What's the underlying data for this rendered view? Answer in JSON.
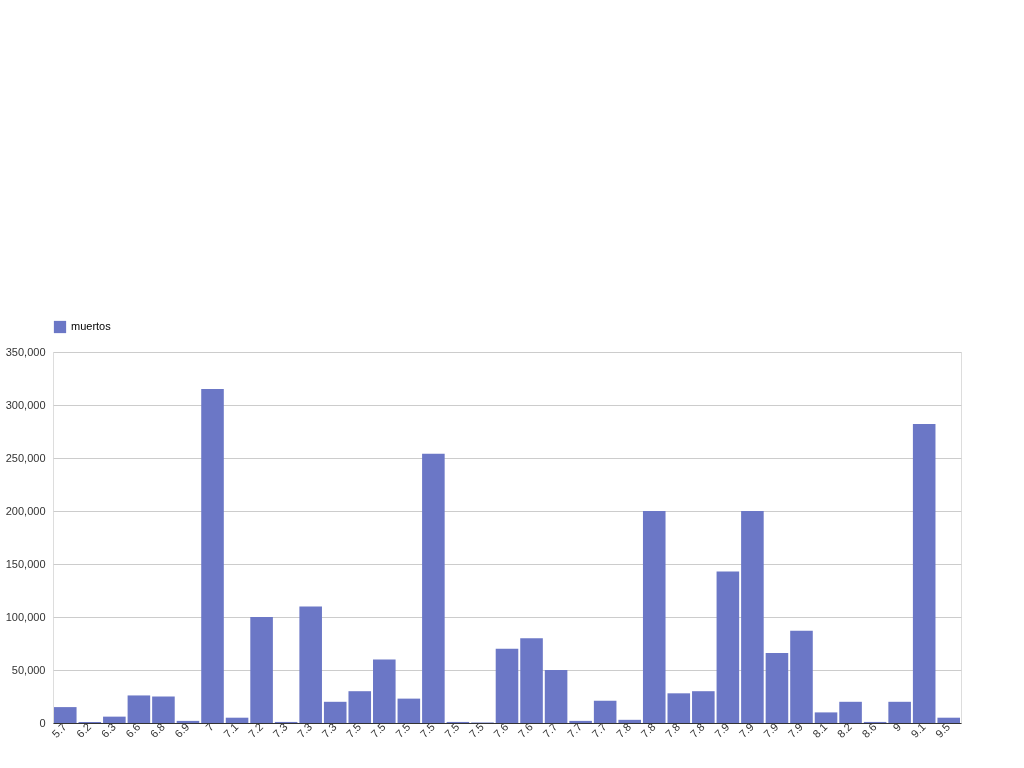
{
  "chart_data": {
    "type": "bar",
    "categories": [
      "5.7",
      "6.2",
      "6.3",
      "6.6",
      "6.8",
      "6.9",
      "7",
      "7.1",
      "7.2",
      "7.3",
      "7.3",
      "7.3",
      "7.5",
      "7.5",
      "7.5",
      "7.5",
      "7.5",
      "7.5",
      "7.6",
      "7.6",
      "7.7",
      "7.7",
      "7.7",
      "7.8",
      "7.8",
      "7.8",
      "7.8",
      "7.9",
      "7.9",
      "7.9",
      "7.9",
      "8.1",
      "8.2",
      "8.6",
      "9",
      "9.1",
      "9.5"
    ],
    "series": [
      {
        "name": "muertos",
        "color": "#6b77c6",
        "values": [
          15000,
          1000,
          6000,
          26000,
          25000,
          2000,
          315000,
          5000,
          100000,
          1000,
          110000,
          20000,
          30000,
          60000,
          23000,
          254000,
          1000,
          500,
          70000,
          80000,
          50000,
          2000,
          21000,
          3000,
          200000,
          28000,
          30000,
          143000,
          200000,
          66000,
          87000,
          10000,
          20000,
          1000,
          20000,
          282000,
          5000
        ]
      }
    ],
    "ylim": [
      0,
      350000
    ],
    "yticks": [
      {
        "value": 0,
        "label": "0"
      },
      {
        "value": 50000,
        "label": "50,000"
      },
      {
        "value": 100000,
        "label": "100,000"
      },
      {
        "value": 150000,
        "label": "150,000"
      },
      {
        "value": 200000,
        "label": "200,000"
      },
      {
        "value": 250000,
        "label": "250,000"
      },
      {
        "value": 300000,
        "label": "300,000"
      },
      {
        "value": 350000,
        "label": "350,000"
      }
    ],
    "grid": "y",
    "legend": "top"
  }
}
